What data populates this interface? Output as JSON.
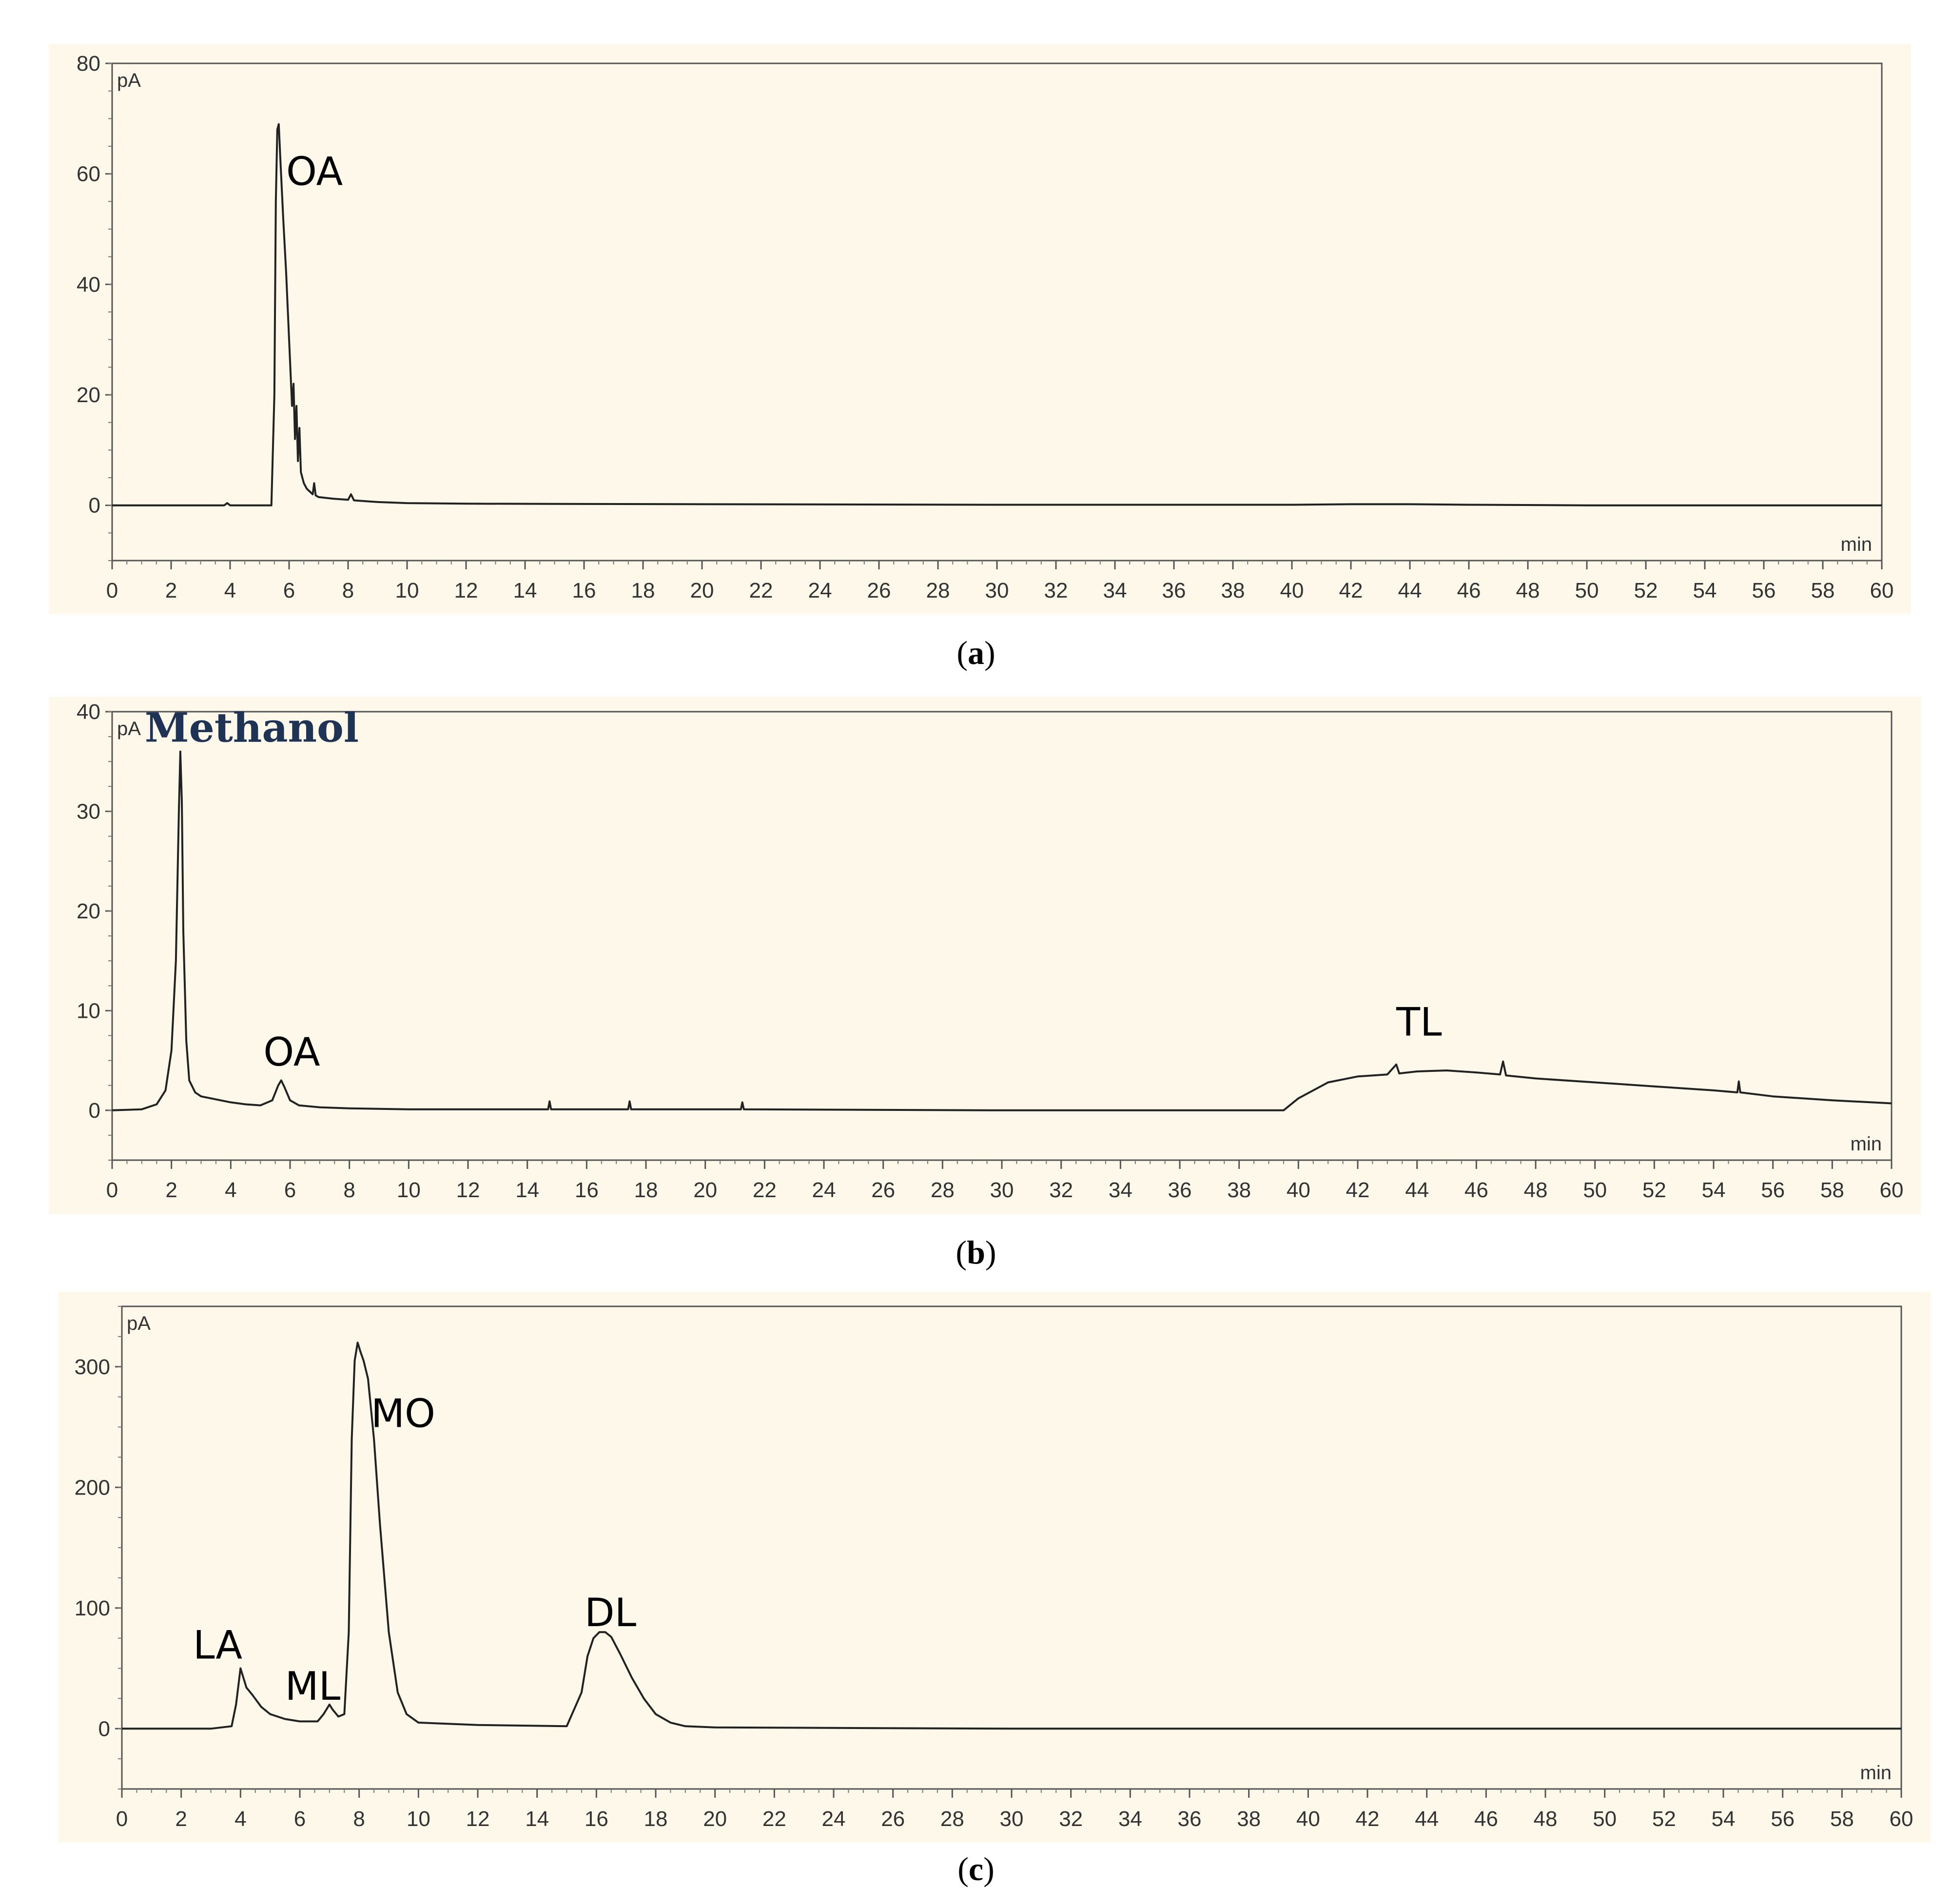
{
  "chart_data": [
    {
      "type": "line",
      "panel_label": "a",
      "xlabel": "min",
      "ylabel": "pA",
      "xlim": [
        0,
        60
      ],
      "ylim": [
        -10,
        80
      ],
      "yticks": [
        0,
        20,
        40,
        60,
        80
      ],
      "xticks": [
        0,
        2,
        4,
        6,
        8,
        10,
        12,
        14,
        16,
        18,
        20,
        22,
        24,
        26,
        28,
        30,
        32,
        34,
        36,
        38,
        40,
        42,
        44,
        46,
        48,
        50,
        52,
        54,
        56,
        58,
        60
      ],
      "background": "#fdf8ea",
      "line_color": "#222222",
      "annotations": [
        {
          "text": "OA",
          "x": 5.9,
          "y": 58
        }
      ],
      "series": [
        {
          "x": [
            0,
            3.8,
            3.9,
            4.0,
            5.4,
            5.5,
            5.55,
            5.6,
            5.65,
            5.7,
            5.8,
            5.9,
            6.0,
            6.1,
            6.15,
            6.2,
            6.25,
            6.3,
            6.35,
            6.4,
            6.45,
            6.5,
            6.6,
            6.8,
            6.85,
            6.9,
            7.0,
            7.5,
            8.0,
            8.1,
            8.2,
            9.0,
            10,
            12,
            20,
            30,
            40,
            42,
            44,
            46,
            50,
            60
          ],
          "y": [
            0,
            0,
            0.4,
            0,
            0,
            20,
            55,
            68,
            69,
            63,
            52,
            42,
            30,
            18,
            22,
            12,
            18,
            8,
            14,
            6,
            5,
            4,
            3,
            2,
            4,
            1.8,
            1.5,
            1.2,
            1.0,
            2.0,
            0.9,
            0.6,
            0.4,
            0.3,
            0.2,
            0.1,
            0.1,
            0.2,
            0.2,
            0.1,
            0,
            0
          ]
        }
      ]
    },
    {
      "type": "line",
      "panel_label": "b",
      "xlabel": "min",
      "ylabel": "pA",
      "xlim": [
        0,
        60
      ],
      "ylim": [
        -5,
        40
      ],
      "yticks": [
        0,
        10,
        20,
        30,
        40
      ],
      "xticks": [
        0,
        2,
        4,
        6,
        8,
        10,
        12,
        14,
        16,
        18,
        20,
        22,
        24,
        26,
        28,
        30,
        32,
        34,
        36,
        38,
        40,
        42,
        44,
        46,
        48,
        50,
        52,
        54,
        56,
        58,
        60
      ],
      "background": "#fdf8ea",
      "line_color": "#222222",
      "annotations": [
        {
          "text": "Methanol",
          "x": 1.1,
          "y": 37,
          "style": "serif-bold"
        },
        {
          "text": "OA",
          "x": 5.1,
          "y": 4.5
        },
        {
          "text": "TL",
          "x": 43.3,
          "y": 7.5
        }
      ],
      "series": [
        {
          "x": [
            0,
            1.0,
            1.5,
            1.8,
            2.0,
            2.15,
            2.25,
            2.3,
            2.35,
            2.4,
            2.5,
            2.6,
            2.8,
            3.0,
            3.5,
            4.0,
            4.5,
            5.0,
            5.4,
            5.6,
            5.7,
            5.8,
            6.0,
            6.3,
            7.0,
            8.0,
            10,
            14.7,
            14.75,
            14.8,
            17.4,
            17.45,
            17.5,
            21.2,
            21.25,
            21.3,
            30,
            39.5,
            40,
            41,
            42,
            43,
            43.3,
            43.4,
            44,
            45,
            46,
            46.8,
            46.9,
            47,
            48,
            50,
            52,
            54,
            54.8,
            54.85,
            54.9,
            56,
            58,
            60
          ],
          "y": [
            0,
            0.1,
            0.6,
            2,
            6,
            15,
            30,
            36,
            31,
            18,
            7,
            3,
            1.8,
            1.4,
            1.1,
            0.8,
            0.6,
            0.5,
            1.0,
            2.5,
            3.0,
            2.4,
            1.0,
            0.5,
            0.3,
            0.2,
            0.1,
            0.1,
            0.9,
            0.1,
            0.1,
            0.9,
            0.1,
            0.1,
            0.8,
            0.1,
            0,
            0,
            1.2,
            2.8,
            3.4,
            3.6,
            4.6,
            3.7,
            3.9,
            4.0,
            3.8,
            3.6,
            4.9,
            3.5,
            3.2,
            2.8,
            2.4,
            2.0,
            1.8,
            2.9,
            1.8,
            1.4,
            1.0,
            0.7
          ]
        }
      ]
    },
    {
      "type": "line",
      "panel_label": "c",
      "xlabel": "min",
      "ylabel": "pA",
      "xlim": [
        0,
        60
      ],
      "ylim": [
        -50,
        350
      ],
      "yticks": [
        0,
        100,
        200,
        300
      ],
      "xticks": [
        0,
        2,
        4,
        6,
        8,
        10,
        12,
        14,
        16,
        18,
        20,
        22,
        24,
        26,
        28,
        30,
        32,
        34,
        36,
        38,
        40,
        42,
        44,
        46,
        48,
        50,
        52,
        54,
        56,
        58,
        60
      ],
      "background": "#fdf8ea",
      "line_color": "#222222",
      "annotations": [
        {
          "text": "LA",
          "x": 2.4,
          "y": 58
        },
        {
          "text": "ML",
          "x": 5.5,
          "y": 24
        },
        {
          "text": "MO",
          "x": 8.4,
          "y": 250
        },
        {
          "text": "DL",
          "x": 15.6,
          "y": 85
        }
      ],
      "series": [
        {
          "x": [
            0,
            3.0,
            3.7,
            3.85,
            3.95,
            4.0,
            4.1,
            4.2,
            4.4,
            4.7,
            5.0,
            5.5,
            6.0,
            6.6,
            6.8,
            7.0,
            7.1,
            7.3,
            7.5,
            7.65,
            7.75,
            7.85,
            7.95,
            8.05,
            8.15,
            8.3,
            8.5,
            8.7,
            9.0,
            9.3,
            9.6,
            10,
            12,
            15.0,
            15.5,
            15.7,
            15.9,
            16.1,
            16.3,
            16.5,
            16.8,
            17.2,
            17.6,
            18.0,
            18.5,
            19,
            20,
            30,
            40,
            60
          ],
          "y": [
            0,
            0,
            2,
            20,
            40,
            50,
            42,
            34,
            28,
            18,
            12,
            8,
            6,
            6,
            12,
            20,
            16,
            10,
            12,
            80,
            240,
            305,
            320,
            312,
            305,
            290,
            240,
            170,
            80,
            30,
            12,
            5,
            3,
            2,
            30,
            60,
            75,
            80,
            80,
            76,
            62,
            42,
            25,
            12,
            5,
            2,
            1,
            0,
            0,
            0
          ]
        }
      ]
    }
  ],
  "captions": [
    {
      "open": "(",
      "letter": "a",
      "close": ")"
    },
    {
      "open": "(",
      "letter": "b",
      "close": ")"
    },
    {
      "open": "(",
      "letter": "c",
      "close": ")"
    }
  ]
}
